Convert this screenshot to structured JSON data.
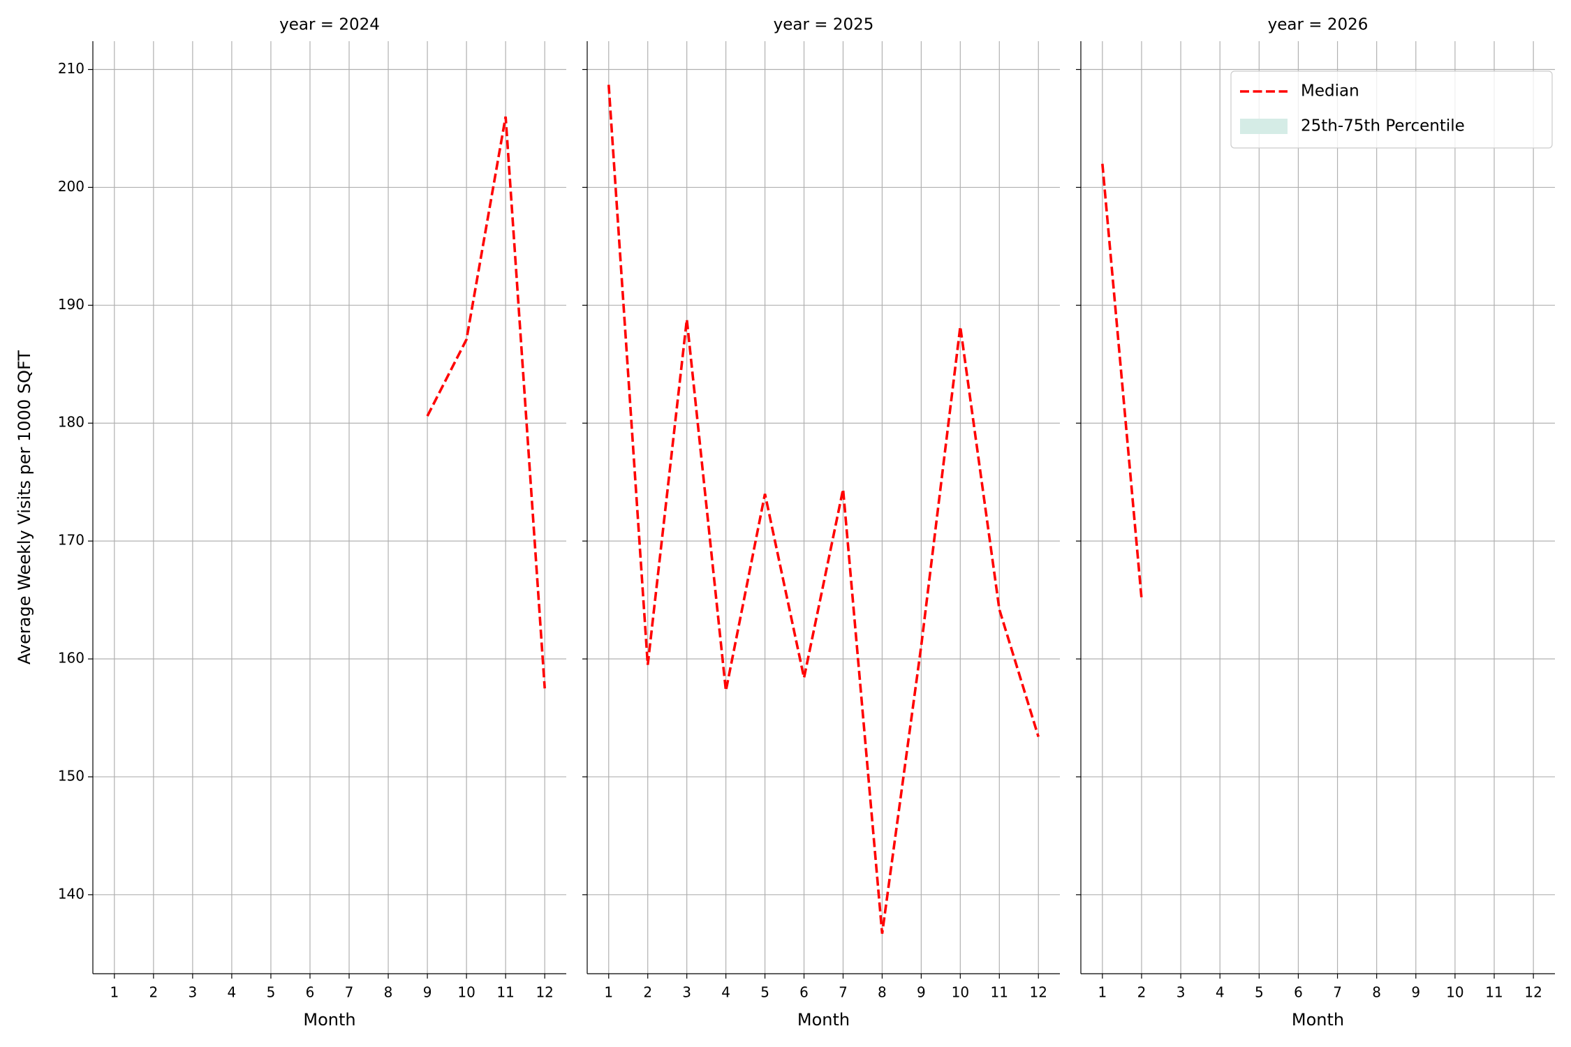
{
  "chart_data": [
    {
      "type": "line",
      "title": "year = 2024",
      "xlabel": "Month",
      "ylabel": "Average Weekly Visits per 1000 SQFT",
      "x": [
        1,
        2,
        3,
        4,
        5,
        6,
        7,
        8,
        9,
        10,
        11,
        12
      ],
      "series": [
        {
          "name": "Median",
          "color": "#ff0000",
          "style": "dashed",
          "values": [
            null,
            null,
            null,
            null,
            null,
            null,
            null,
            null,
            180.6,
            187.1,
            206.0,
            157.5
          ]
        }
      ],
      "xlim": [
        0.45,
        12.55
      ],
      "xticks": [
        1,
        2,
        3,
        4,
        5,
        6,
        7,
        8,
        9,
        10,
        11,
        12
      ],
      "ylim": [
        133.3,
        212.4
      ],
      "yticks": [
        140,
        150,
        160,
        170,
        180,
        190,
        200,
        210
      ],
      "grid": true
    },
    {
      "type": "line",
      "title": "year = 2025",
      "xlabel": "Month",
      "x": [
        1,
        2,
        3,
        4,
        5,
        6,
        7,
        8,
        9,
        10,
        11,
        12
      ],
      "series": [
        {
          "name": "Median",
          "color": "#ff0000",
          "style": "dashed",
          "values": [
            208.7,
            159.5,
            188.8,
            157.3,
            174.0,
            158.4,
            174.4,
            136.7,
            161.1,
            188.2,
            164.2,
            153.4
          ]
        }
      ],
      "xlim": [
        0.45,
        12.55
      ],
      "xticks": [
        1,
        2,
        3,
        4,
        5,
        6,
        7,
        8,
        9,
        10,
        11,
        12
      ],
      "grid": true
    },
    {
      "type": "line",
      "title": "year = 2026",
      "xlabel": "Month",
      "x": [
        1,
        2,
        3,
        4,
        5,
        6,
        7,
        8,
        9,
        10,
        11,
        12
      ],
      "series": [
        {
          "name": "Median",
          "color": "#ff0000",
          "style": "dashed",
          "values": [
            202.0,
            165.1,
            null,
            null,
            null,
            null,
            null,
            null,
            null,
            null,
            null,
            null
          ]
        },
        {
          "name": "25th-75th Percentile",
          "color": "#d5ece6",
          "style": "band",
          "values": [
            null,
            null,
            null,
            null,
            null,
            null,
            null,
            null,
            null,
            null,
            null,
            null
          ]
        }
      ],
      "xlim": [
        0.45,
        12.55
      ],
      "xticks": [
        1,
        2,
        3,
        4,
        5,
        6,
        7,
        8,
        9,
        10,
        11,
        12
      ],
      "grid": true,
      "legend": "upper right"
    }
  ]
}
